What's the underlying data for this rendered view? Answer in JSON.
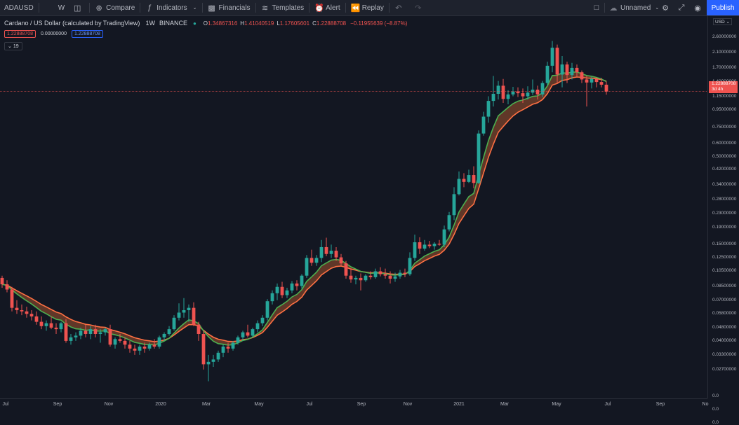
{
  "toolbar": {
    "symbol": "ADAUSD",
    "interval": "W",
    "compare": "Compare",
    "indicators": "Indicators",
    "financials": "Financials",
    "templates": "Templates",
    "alert": "Alert",
    "replay": "Replay",
    "layout_name": "Unnamed",
    "publish": "Publish"
  },
  "legend": {
    "title": "Cardano / US Dollar (calculated by TradingView)",
    "interval": "1W",
    "exchange": "BINANCE",
    "o_label": "O",
    "o": "1.34867316",
    "h_label": "H",
    "h": "1.41040519",
    "l_label": "L",
    "l": "1.17605601",
    "c_label": "C",
    "c": "1.22888708",
    "change": "−0.11955639 (−8.87%)"
  },
  "indicator": {
    "v1": "1.22888708",
    "v2": "0.00000000",
    "v3": "1.22888708",
    "collapse": "19"
  },
  "yaxis": {
    "currency": "USD",
    "ticks": [
      "2.60000000",
      "2.10000000",
      "1.70000000",
      "1.40000000",
      "1.15000000",
      "0.95000000",
      "0.75000000",
      "0.60000000",
      "0.50000000",
      "0.42000000",
      "0.34000000",
      "0.28000000",
      "0.23000000",
      "0.19000000",
      "0.15000000",
      "0.12500000",
      "0.10500000",
      "0.08500000",
      "0.07000000",
      "0.05800000",
      "0.04800000",
      "0.04000000",
      "0.03300000",
      "0.02700000",
      "0.0",
      "0.0",
      "0.0"
    ],
    "price_badge": "1.22888708",
    "countdown": "3d 4h"
  },
  "xaxis": {
    "ticks": [
      "Jul",
      "Sep",
      "Nov",
      "2020",
      "Mar",
      "May",
      "Jul",
      "Sep",
      "Nov",
      "2021",
      "Mar",
      "May",
      "Jul",
      "Sep",
      "No"
    ]
  },
  "colors": {
    "up": "#26a69a",
    "down": "#ef5350",
    "fast_ma": "#4caf50",
    "slow_ma": "#ff7043"
  },
  "chart_data": {
    "type": "candlestick",
    "symbol": "ADAUSD",
    "scale": "log",
    "ylim": [
      0.02,
      2.8
    ],
    "candles": [
      {
        "o": 0.095,
        "h": 0.098,
        "l": 0.083,
        "c": 0.087
      },
      {
        "o": 0.087,
        "h": 0.092,
        "l": 0.078,
        "c": 0.081
      },
      {
        "o": 0.081,
        "h": 0.084,
        "l": 0.06,
        "c": 0.063
      },
      {
        "o": 0.063,
        "h": 0.07,
        "l": 0.058,
        "c": 0.061
      },
      {
        "o": 0.061,
        "h": 0.066,
        "l": 0.057,
        "c": 0.06
      },
      {
        "o": 0.06,
        "h": 0.064,
        "l": 0.055,
        "c": 0.058
      },
      {
        "o": 0.058,
        "h": 0.061,
        "l": 0.053,
        "c": 0.056
      },
      {
        "o": 0.056,
        "h": 0.06,
        "l": 0.05,
        "c": 0.052
      },
      {
        "o": 0.052,
        "h": 0.056,
        "l": 0.047,
        "c": 0.049
      },
      {
        "o": 0.049,
        "h": 0.053,
        "l": 0.046,
        "c": 0.051
      },
      {
        "o": 0.051,
        "h": 0.056,
        "l": 0.047,
        "c": 0.048
      },
      {
        "o": 0.048,
        "h": 0.051,
        "l": 0.044,
        "c": 0.047
      },
      {
        "o": 0.047,
        "h": 0.052,
        "l": 0.045,
        "c": 0.051
      },
      {
        "o": 0.051,
        "h": 0.054,
        "l": 0.039,
        "c": 0.04
      },
      {
        "o": 0.04,
        "h": 0.044,
        "l": 0.038,
        "c": 0.042
      },
      {
        "o": 0.042,
        "h": 0.045,
        "l": 0.04,
        "c": 0.043
      },
      {
        "o": 0.043,
        "h": 0.048,
        "l": 0.041,
        "c": 0.046
      },
      {
        "o": 0.046,
        "h": 0.05,
        "l": 0.042,
        "c": 0.044
      },
      {
        "o": 0.044,
        "h": 0.049,
        "l": 0.041,
        "c": 0.047
      },
      {
        "o": 0.047,
        "h": 0.05,
        "l": 0.042,
        "c": 0.044
      },
      {
        "o": 0.044,
        "h": 0.047,
        "l": 0.039,
        "c": 0.045
      },
      {
        "o": 0.045,
        "h": 0.048,
        "l": 0.043,
        "c": 0.047
      },
      {
        "o": 0.047,
        "h": 0.05,
        "l": 0.037,
        "c": 0.038
      },
      {
        "o": 0.038,
        "h": 0.042,
        "l": 0.036,
        "c": 0.041
      },
      {
        "o": 0.041,
        "h": 0.044,
        "l": 0.039,
        "c": 0.04
      },
      {
        "o": 0.04,
        "h": 0.042,
        "l": 0.036,
        "c": 0.038
      },
      {
        "o": 0.038,
        "h": 0.04,
        "l": 0.034,
        "c": 0.036
      },
      {
        "o": 0.036,
        "h": 0.038,
        "l": 0.033,
        "c": 0.035
      },
      {
        "o": 0.035,
        "h": 0.038,
        "l": 0.033,
        "c": 0.037
      },
      {
        "o": 0.037,
        "h": 0.039,
        "l": 0.034,
        "c": 0.036
      },
      {
        "o": 0.036,
        "h": 0.039,
        "l": 0.035,
        "c": 0.038
      },
      {
        "o": 0.038,
        "h": 0.041,
        "l": 0.036,
        "c": 0.037
      },
      {
        "o": 0.037,
        "h": 0.043,
        "l": 0.036,
        "c": 0.042
      },
      {
        "o": 0.042,
        "h": 0.045,
        "l": 0.04,
        "c": 0.044
      },
      {
        "o": 0.044,
        "h": 0.049,
        "l": 0.043,
        "c": 0.047
      },
      {
        "o": 0.047,
        "h": 0.057,
        "l": 0.046,
        "c": 0.055
      },
      {
        "o": 0.055,
        "h": 0.067,
        "l": 0.053,
        "c": 0.059
      },
      {
        "o": 0.059,
        "h": 0.072,
        "l": 0.055,
        "c": 0.061
      },
      {
        "o": 0.061,
        "h": 0.066,
        "l": 0.052,
        "c": 0.063
      },
      {
        "o": 0.063,
        "h": 0.068,
        "l": 0.049,
        "c": 0.05
      },
      {
        "o": 0.05,
        "h": 0.052,
        "l": 0.04,
        "c": 0.044
      },
      {
        "o": 0.044,
        "h": 0.046,
        "l": 0.027,
        "c": 0.029
      },
      {
        "o": 0.029,
        "h": 0.033,
        "l": 0.023,
        "c": 0.03
      },
      {
        "o": 0.03,
        "h": 0.033,
        "l": 0.028,
        "c": 0.031
      },
      {
        "o": 0.031,
        "h": 0.035,
        "l": 0.03,
        "c": 0.034
      },
      {
        "o": 0.034,
        "h": 0.038,
        "l": 0.032,
        "c": 0.037
      },
      {
        "o": 0.037,
        "h": 0.039,
        "l": 0.034,
        "c": 0.036
      },
      {
        "o": 0.036,
        "h": 0.04,
        "l": 0.035,
        "c": 0.039
      },
      {
        "o": 0.039,
        "h": 0.043,
        "l": 0.038,
        "c": 0.042
      },
      {
        "o": 0.042,
        "h": 0.046,
        "l": 0.04,
        "c": 0.045
      },
      {
        "o": 0.045,
        "h": 0.05,
        "l": 0.042,
        "c": 0.043
      },
      {
        "o": 0.043,
        "h": 0.048,
        "l": 0.042,
        "c": 0.047
      },
      {
        "o": 0.047,
        "h": 0.053,
        "l": 0.045,
        "c": 0.051
      },
      {
        "o": 0.051,
        "h": 0.057,
        "l": 0.049,
        "c": 0.055
      },
      {
        "o": 0.055,
        "h": 0.071,
        "l": 0.053,
        "c": 0.069
      },
      {
        "o": 0.069,
        "h": 0.08,
        "l": 0.066,
        "c": 0.077
      },
      {
        "o": 0.077,
        "h": 0.088,
        "l": 0.07,
        "c": 0.084
      },
      {
        "o": 0.084,
        "h": 0.09,
        "l": 0.072,
        "c": 0.075
      },
      {
        "o": 0.075,
        "h": 0.083,
        "l": 0.072,
        "c": 0.08
      },
      {
        "o": 0.08,
        "h": 0.091,
        "l": 0.077,
        "c": 0.088
      },
      {
        "o": 0.088,
        "h": 0.092,
        "l": 0.08,
        "c": 0.085
      },
      {
        "o": 0.085,
        "h": 0.1,
        "l": 0.082,
        "c": 0.098
      },
      {
        "o": 0.098,
        "h": 0.13,
        "l": 0.095,
        "c": 0.125
      },
      {
        "o": 0.125,
        "h": 0.14,
        "l": 0.112,
        "c": 0.117
      },
      {
        "o": 0.117,
        "h": 0.13,
        "l": 0.112,
        "c": 0.125
      },
      {
        "o": 0.125,
        "h": 0.16,
        "l": 0.118,
        "c": 0.145
      },
      {
        "o": 0.145,
        "h": 0.165,
        "l": 0.128,
        "c": 0.132
      },
      {
        "o": 0.132,
        "h": 0.15,
        "l": 0.125,
        "c": 0.138
      },
      {
        "o": 0.138,
        "h": 0.145,
        "l": 0.12,
        "c": 0.126
      },
      {
        "o": 0.126,
        "h": 0.132,
        "l": 0.112,
        "c": 0.116
      },
      {
        "o": 0.116,
        "h": 0.12,
        "l": 0.094,
        "c": 0.098
      },
      {
        "o": 0.098,
        "h": 0.108,
        "l": 0.089,
        "c": 0.093
      },
      {
        "o": 0.093,
        "h": 0.098,
        "l": 0.087,
        "c": 0.095
      },
      {
        "o": 0.095,
        "h": 0.101,
        "l": 0.08,
        "c": 0.092
      },
      {
        "o": 0.092,
        "h": 0.1,
        "l": 0.09,
        "c": 0.098
      },
      {
        "o": 0.098,
        "h": 0.104,
        "l": 0.093,
        "c": 0.096
      },
      {
        "o": 0.096,
        "h": 0.108,
        "l": 0.094,
        "c": 0.104
      },
      {
        "o": 0.104,
        "h": 0.11,
        "l": 0.097,
        "c": 0.1
      },
      {
        "o": 0.1,
        "h": 0.108,
        "l": 0.094,
        "c": 0.098
      },
      {
        "o": 0.098,
        "h": 0.104,
        "l": 0.088,
        "c": 0.094
      },
      {
        "o": 0.094,
        "h": 0.102,
        "l": 0.09,
        "c": 0.097
      },
      {
        "o": 0.097,
        "h": 0.106,
        "l": 0.094,
        "c": 0.102
      },
      {
        "o": 0.102,
        "h": 0.108,
        "l": 0.096,
        "c": 0.1
      },
      {
        "o": 0.1,
        "h": 0.135,
        "l": 0.098,
        "c": 0.125
      },
      {
        "o": 0.125,
        "h": 0.172,
        "l": 0.12,
        "c": 0.155
      },
      {
        "o": 0.155,
        "h": 0.166,
        "l": 0.132,
        "c": 0.142
      },
      {
        "o": 0.142,
        "h": 0.16,
        "l": 0.138,
        "c": 0.15
      },
      {
        "o": 0.15,
        "h": 0.158,
        "l": 0.143,
        "c": 0.147
      },
      {
        "o": 0.147,
        "h": 0.155,
        "l": 0.14,
        "c": 0.152
      },
      {
        "o": 0.152,
        "h": 0.16,
        "l": 0.148,
        "c": 0.15
      },
      {
        "o": 0.15,
        "h": 0.195,
        "l": 0.145,
        "c": 0.185
      },
      {
        "o": 0.185,
        "h": 0.235,
        "l": 0.18,
        "c": 0.225
      },
      {
        "o": 0.225,
        "h": 0.33,
        "l": 0.21,
        "c": 0.3
      },
      {
        "o": 0.3,
        "h": 0.41,
        "l": 0.295,
        "c": 0.37
      },
      {
        "o": 0.37,
        "h": 0.4,
        "l": 0.33,
        "c": 0.355
      },
      {
        "o": 0.355,
        "h": 0.42,
        "l": 0.35,
        "c": 0.39
      },
      {
        "o": 0.39,
        "h": 0.44,
        "l": 0.325,
        "c": 0.35
      },
      {
        "o": 0.35,
        "h": 0.72,
        "l": 0.345,
        "c": 0.69
      },
      {
        "o": 0.69,
        "h": 0.93,
        "l": 0.67,
        "c": 0.87
      },
      {
        "o": 0.87,
        "h": 1.15,
        "l": 0.8,
        "c": 1.08
      },
      {
        "o": 1.08,
        "h": 1.52,
        "l": 1.0,
        "c": 1.19
      },
      {
        "o": 1.19,
        "h": 1.42,
        "l": 1.1,
        "c": 1.33
      },
      {
        "o": 1.33,
        "h": 1.46,
        "l": 1.05,
        "c": 1.11
      },
      {
        "o": 1.11,
        "h": 1.25,
        "l": 1.03,
        "c": 1.18
      },
      {
        "o": 1.18,
        "h": 1.31,
        "l": 1.15,
        "c": 1.23
      },
      {
        "o": 1.23,
        "h": 1.3,
        "l": 1.14,
        "c": 1.2
      },
      {
        "o": 1.2,
        "h": 1.28,
        "l": 1.05,
        "c": 1.15
      },
      {
        "o": 1.15,
        "h": 1.32,
        "l": 1.1,
        "c": 1.21
      },
      {
        "o": 1.21,
        "h": 1.45,
        "l": 1.17,
        "c": 1.26
      },
      {
        "o": 1.26,
        "h": 1.33,
        "l": 1.1,
        "c": 1.18
      },
      {
        "o": 1.18,
        "h": 1.42,
        "l": 1.14,
        "c": 1.38
      },
      {
        "o": 1.38,
        "h": 1.85,
        "l": 1.33,
        "c": 1.75
      },
      {
        "o": 1.75,
        "h": 2.46,
        "l": 1.6,
        "c": 2.24
      },
      {
        "o": 2.24,
        "h": 2.34,
        "l": 1.38,
        "c": 1.55
      },
      {
        "o": 1.55,
        "h": 2.0,
        "l": 1.3,
        "c": 1.78
      },
      {
        "o": 1.78,
        "h": 1.85,
        "l": 1.38,
        "c": 1.54
      },
      {
        "o": 1.54,
        "h": 1.82,
        "l": 1.45,
        "c": 1.7
      },
      {
        "o": 1.7,
        "h": 1.78,
        "l": 1.51,
        "c": 1.6
      },
      {
        "o": 1.6,
        "h": 1.64,
        "l": 1.38,
        "c": 1.45
      },
      {
        "o": 1.45,
        "h": 1.52,
        "l": 1.0,
        "c": 1.39
      },
      {
        "o": 1.39,
        "h": 1.5,
        "l": 1.28,
        "c": 1.46
      },
      {
        "o": 1.46,
        "h": 1.49,
        "l": 1.3,
        "c": 1.4
      },
      {
        "o": 1.4,
        "h": 1.48,
        "l": 1.3,
        "c": 1.349
      },
      {
        "o": 1.349,
        "h": 1.41,
        "l": 1.176,
        "c": 1.229
      }
    ],
    "ma_fast": {
      "name": "",
      "color": "#4caf50"
    },
    "ma_slow": {
      "name": "",
      "color": "#ff7043"
    }
  }
}
